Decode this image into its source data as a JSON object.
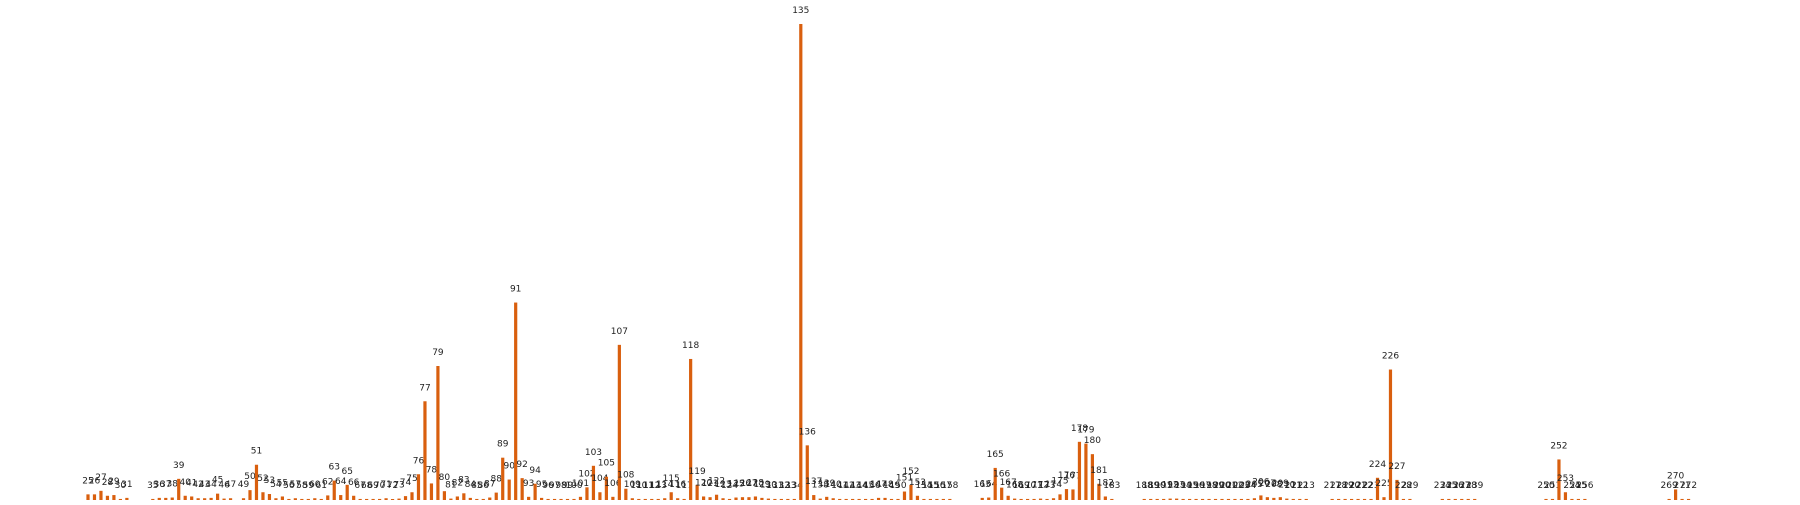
{
  "chart_data": {
    "type": "bar",
    "title": "",
    "xlabel": "",
    "ylabel": "",
    "grid": false,
    "axes_visible": false,
    "bar_color": "#d95f0e",
    "data_labels": "category number above each bar",
    "ylim": [
      0,
      140
    ],
    "points": [
      {
        "label": "25",
        "value": 1.6
      },
      {
        "label": "26",
        "value": 1.6
      },
      {
        "label": "27",
        "value": 2.6
      },
      {
        "label": "28",
        "value": 1.2
      },
      {
        "label": "29",
        "value": 1.4
      },
      {
        "label": "30",
        "value": 0.3
      },
      {
        "label": "31",
        "value": 0.6
      },
      {
        "label": "35",
        "value": 0.3
      },
      {
        "label": "36",
        "value": 0.6
      },
      {
        "label": "37",
        "value": 0.6
      },
      {
        "label": "38",
        "value": 0.7
      },
      {
        "label": "39",
        "value": 6
      },
      {
        "label": "40",
        "value": 1.2
      },
      {
        "label": "41",
        "value": 1
      },
      {
        "label": "42",
        "value": 0.5
      },
      {
        "label": "43",
        "value": 0.5
      },
      {
        "label": "44",
        "value": 0.6
      },
      {
        "label": "45",
        "value": 1.8
      },
      {
        "label": "46",
        "value": 0.4
      },
      {
        "label": "47",
        "value": 0.5
      },
      {
        "label": "49",
        "value": 0.5
      },
      {
        "label": "50",
        "value": 2.8
      },
      {
        "label": "51",
        "value": 10
      },
      {
        "label": "52",
        "value": 2.2
      },
      {
        "label": "53",
        "value": 1.7
      },
      {
        "label": "54",
        "value": 0.5
      },
      {
        "label": "55",
        "value": 1
      },
      {
        "label": "56",
        "value": 0.3
      },
      {
        "label": "57",
        "value": 0.5
      },
      {
        "label": "58",
        "value": 0.3
      },
      {
        "label": "59",
        "value": 0.3
      },
      {
        "label": "60",
        "value": 0.5
      },
      {
        "label": "61",
        "value": 0.3
      },
      {
        "label": "62",
        "value": 1.3
      },
      {
        "label": "63",
        "value": 5.5
      },
      {
        "label": "64",
        "value": 1.4
      },
      {
        "label": "65",
        "value": 4.3
      },
      {
        "label": "66",
        "value": 1.2
      },
      {
        "label": "67",
        "value": 0.3
      },
      {
        "label": "68",
        "value": 0.3
      },
      {
        "label": "69",
        "value": 0.3
      },
      {
        "label": "70",
        "value": 0.3
      },
      {
        "label": "71",
        "value": 0.5
      },
      {
        "label": "72",
        "value": 0.2
      },
      {
        "label": "73",
        "value": 0.4
      },
      {
        "label": "74",
        "value": 1.1
      },
      {
        "label": "75",
        "value": 2.2
      },
      {
        "label": "76",
        "value": 7.3
      },
      {
        "label": "77",
        "value": 28
      },
      {
        "label": "78",
        "value": 4.7
      },
      {
        "label": "79",
        "value": 38
      },
      {
        "label": "80",
        "value": 2.5
      },
      {
        "label": "81",
        "value": 0.4
      },
      {
        "label": "82",
        "value": 1
      },
      {
        "label": "83",
        "value": 1.9
      },
      {
        "label": "84",
        "value": 0.6
      },
      {
        "label": "85",
        "value": 0.3
      },
      {
        "label": "86",
        "value": 0.3
      },
      {
        "label": "87",
        "value": 0.7
      },
      {
        "label": "88",
        "value": 2.1
      },
      {
        "label": "89",
        "value": 12
      },
      {
        "label": "90",
        "value": 5.8
      },
      {
        "label": "91",
        "value": 56
      },
      {
        "label": "92",
        "value": 6.2
      },
      {
        "label": "93",
        "value": 0.9
      },
      {
        "label": "94",
        "value": 4.6
      },
      {
        "label": "95",
        "value": 0.6
      },
      {
        "label": "96",
        "value": 0.3
      },
      {
        "label": "97",
        "value": 0.3
      },
      {
        "label": "98",
        "value": 0.3
      },
      {
        "label": "99",
        "value": 0.3
      },
      {
        "label": "100",
        "value": 0.3
      },
      {
        "label": "101",
        "value": 0.9
      },
      {
        "label": "102",
        "value": 3.6
      },
      {
        "label": "103",
        "value": 9.7
      },
      {
        "label": "104",
        "value": 2.2
      },
      {
        "label": "105",
        "value": 6.6
      },
      {
        "label": "106",
        "value": 0.9
      },
      {
        "label": "107",
        "value": 44
      },
      {
        "label": "108",
        "value": 3.2
      },
      {
        "label": "109",
        "value": 0.5
      },
      {
        "label": "110",
        "value": 0.3
      },
      {
        "label": "111",
        "value": 0.3
      },
      {
        "label": "112",
        "value": 0.3
      },
      {
        "label": "113",
        "value": 0.3
      },
      {
        "label": "114",
        "value": 0.5
      },
      {
        "label": "115",
        "value": 2.2
      },
      {
        "label": "116",
        "value": 0.5
      },
      {
        "label": "117",
        "value": 0.3
      },
      {
        "label": "118",
        "value": 40
      },
      {
        "label": "119",
        "value": 4.3
      },
      {
        "label": "120",
        "value": 1
      },
      {
        "label": "121",
        "value": 0.8
      },
      {
        "label": "122",
        "value": 1.5
      },
      {
        "label": "123",
        "value": 0.5
      },
      {
        "label": "124",
        "value": 0.3
      },
      {
        "label": "125",
        "value": 0.7
      },
      {
        "label": "126",
        "value": 0.8
      },
      {
        "label": "127",
        "value": 0.8
      },
      {
        "label": "128",
        "value": 1
      },
      {
        "label": "129",
        "value": 0.6
      },
      {
        "label": "130",
        "value": 0.4
      },
      {
        "label": "131",
        "value": 0.3
      },
      {
        "label": "132",
        "value": 0.3
      },
      {
        "label": "133",
        "value": 0.3
      },
      {
        "label": "134",
        "value": 0.3
      },
      {
        "label": "135",
        "value": 135
      },
      {
        "label": "136",
        "value": 15.5
      },
      {
        "label": "137",
        "value": 1.4
      },
      {
        "label": "138",
        "value": 0.4
      },
      {
        "label": "139",
        "value": 0.9
      },
      {
        "label": "140",
        "value": 0.5
      },
      {
        "label": "141",
        "value": 0.3
      },
      {
        "label": "142",
        "value": 0.3
      },
      {
        "label": "143",
        "value": 0.3
      },
      {
        "label": "144",
        "value": 0.3
      },
      {
        "label": "145",
        "value": 0.3
      },
      {
        "label": "146",
        "value": 0.3
      },
      {
        "label": "147",
        "value": 0.6
      },
      {
        "label": "148",
        "value": 0.6
      },
      {
        "label": "149",
        "value": 0.3
      },
      {
        "label": "150",
        "value": 0.3
      },
      {
        "label": "151",
        "value": 2.4
      },
      {
        "label": "152",
        "value": 4.3
      },
      {
        "label": "153",
        "value": 1.2
      },
      {
        "label": "154",
        "value": 0.3
      },
      {
        "label": "155",
        "value": 0.3
      },
      {
        "label": "156",
        "value": 0.3
      },
      {
        "label": "157",
        "value": 0.3
      },
      {
        "label": "158",
        "value": 0.3
      },
      {
        "label": "163",
        "value": 0.6
      },
      {
        "label": "164",
        "value": 0.7
      },
      {
        "label": "165",
        "value": 9.1
      },
      {
        "label": "166",
        "value": 3.5
      },
      {
        "label": "167",
        "value": 1.2
      },
      {
        "label": "168",
        "value": 0.4
      },
      {
        "label": "169",
        "value": 0.3
      },
      {
        "label": "170",
        "value": 0.3
      },
      {
        "label": "171",
        "value": 0.3
      },
      {
        "label": "172",
        "value": 0.4
      },
      {
        "label": "173",
        "value": 0.3
      },
      {
        "label": "174",
        "value": 0.5
      },
      {
        "label": "175",
        "value": 1.6
      },
      {
        "label": "176",
        "value": 3.1
      },
      {
        "label": "177",
        "value": 3
      },
      {
        "label": "178",
        "value": 16.5
      },
      {
        "label": "179",
        "value": 16
      },
      {
        "label": "180",
        "value": 13
      },
      {
        "label": "181",
        "value": 4.6
      },
      {
        "label": "182",
        "value": 1
      },
      {
        "label": "183",
        "value": 0.3
      },
      {
        "label": "188",
        "value": 0.3
      },
      {
        "label": "189",
        "value": 0.3
      },
      {
        "label": "190",
        "value": 0.3
      },
      {
        "label": "191",
        "value": 0.3
      },
      {
        "label": "192",
        "value": 0.4
      },
      {
        "label": "193",
        "value": 0.4
      },
      {
        "label": "194",
        "value": 0.3
      },
      {
        "label": "195",
        "value": 0.3
      },
      {
        "label": "196",
        "value": 0.3
      },
      {
        "label": "197",
        "value": 0.3
      },
      {
        "label": "198",
        "value": 0.3
      },
      {
        "label": "199",
        "value": 0.3
      },
      {
        "label": "200",
        "value": 0.3
      },
      {
        "label": "201",
        "value": 0.3
      },
      {
        "label": "202",
        "value": 0.3
      },
      {
        "label": "203",
        "value": 0.3
      },
      {
        "label": "204",
        "value": 0.3
      },
      {
        "label": "205",
        "value": 0.5
      },
      {
        "label": "206",
        "value": 1.3
      },
      {
        "label": "207",
        "value": 0.8
      },
      {
        "label": "208",
        "value": 0.6
      },
      {
        "label": "209",
        "value": 0.8
      },
      {
        "label": "210",
        "value": 0.4
      },
      {
        "label": "211",
        "value": 0.3
      },
      {
        "label": "212",
        "value": 0.3
      },
      {
        "label": "213",
        "value": 0.3
      },
      {
        "label": "217",
        "value": 0.3
      },
      {
        "label": "218",
        "value": 0.3
      },
      {
        "label": "219",
        "value": 0.3
      },
      {
        "label": "220",
        "value": 0.3
      },
      {
        "label": "221",
        "value": 0.3
      },
      {
        "label": "222",
        "value": 0.3
      },
      {
        "label": "223",
        "value": 0.3
      },
      {
        "label": "224",
        "value": 6.3
      },
      {
        "label": "225",
        "value": 0.8
      },
      {
        "label": "226",
        "value": 37
      },
      {
        "label": "227",
        "value": 5.7
      },
      {
        "label": "228",
        "value": 0.3
      },
      {
        "label": "229",
        "value": 0.3
      },
      {
        "label": "234",
        "value": 0.3
      },
      {
        "label": "235",
        "value": 0.3
      },
      {
        "label": "236",
        "value": 0.3
      },
      {
        "label": "237",
        "value": 0.3
      },
      {
        "label": "238",
        "value": 0.3
      },
      {
        "label": "239",
        "value": 0.3
      },
      {
        "label": "250",
        "value": 0.3
      },
      {
        "label": "251",
        "value": 0.3
      },
      {
        "label": "252",
        "value": 11.5
      },
      {
        "label": "253",
        "value": 2.2
      },
      {
        "label": "254",
        "value": 0.3
      },
      {
        "label": "255",
        "value": 0.3
      },
      {
        "label": "256",
        "value": 0.3
      },
      {
        "label": "269",
        "value": 0.3
      },
      {
        "label": "270",
        "value": 3
      },
      {
        "label": "271",
        "value": 0.3
      },
      {
        "label": "272",
        "value": 0.3
      }
    ]
  }
}
